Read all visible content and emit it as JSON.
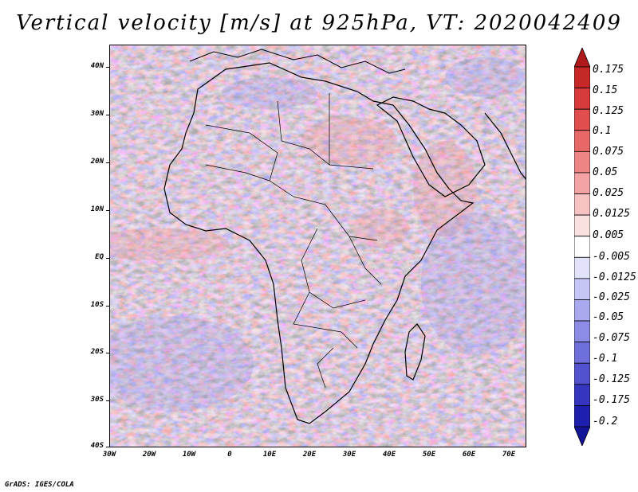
{
  "title": "Vertical velocity [m/s] at 925hPa, VT: 2020042409",
  "credit": "GrADS: IGES/COLA",
  "map": {
    "region": "Africa and Middle East",
    "lat_labels": [
      "40N",
      "30N",
      "20N",
      "10N",
      "EQ",
      "10S",
      "20S",
      "30S",
      "40S"
    ],
    "lon_labels": [
      "30W",
      "20W",
      "10W",
      "0",
      "10E",
      "20E",
      "30E",
      "40E",
      "50E",
      "60E",
      "70E"
    ]
  },
  "colorbar": {
    "labels": [
      "0.175",
      "0.15",
      "0.125",
      "0.1",
      "0.075",
      "0.05",
      "0.025",
      "0.0125",
      "0.005",
      "-0.005",
      "-0.0125",
      "-0.025",
      "-0.05",
      "-0.075",
      "-0.1",
      "-0.125",
      "-0.175",
      "-0.2"
    ],
    "colors": [
      "#b01a1a",
      "#c62828",
      "#d63a3a",
      "#e04e4e",
      "#e86868",
      "#ee8585",
      "#f3a3a3",
      "#f7c2c2",
      "#fbe0e0",
      "#ffffff",
      "#e2e2fb",
      "#c6c6f6",
      "#a9a9ef",
      "#8c8ce6",
      "#6f6fdc",
      "#5252cf",
      "#3535c0",
      "#1f1fae",
      "#141498"
    ]
  }
}
